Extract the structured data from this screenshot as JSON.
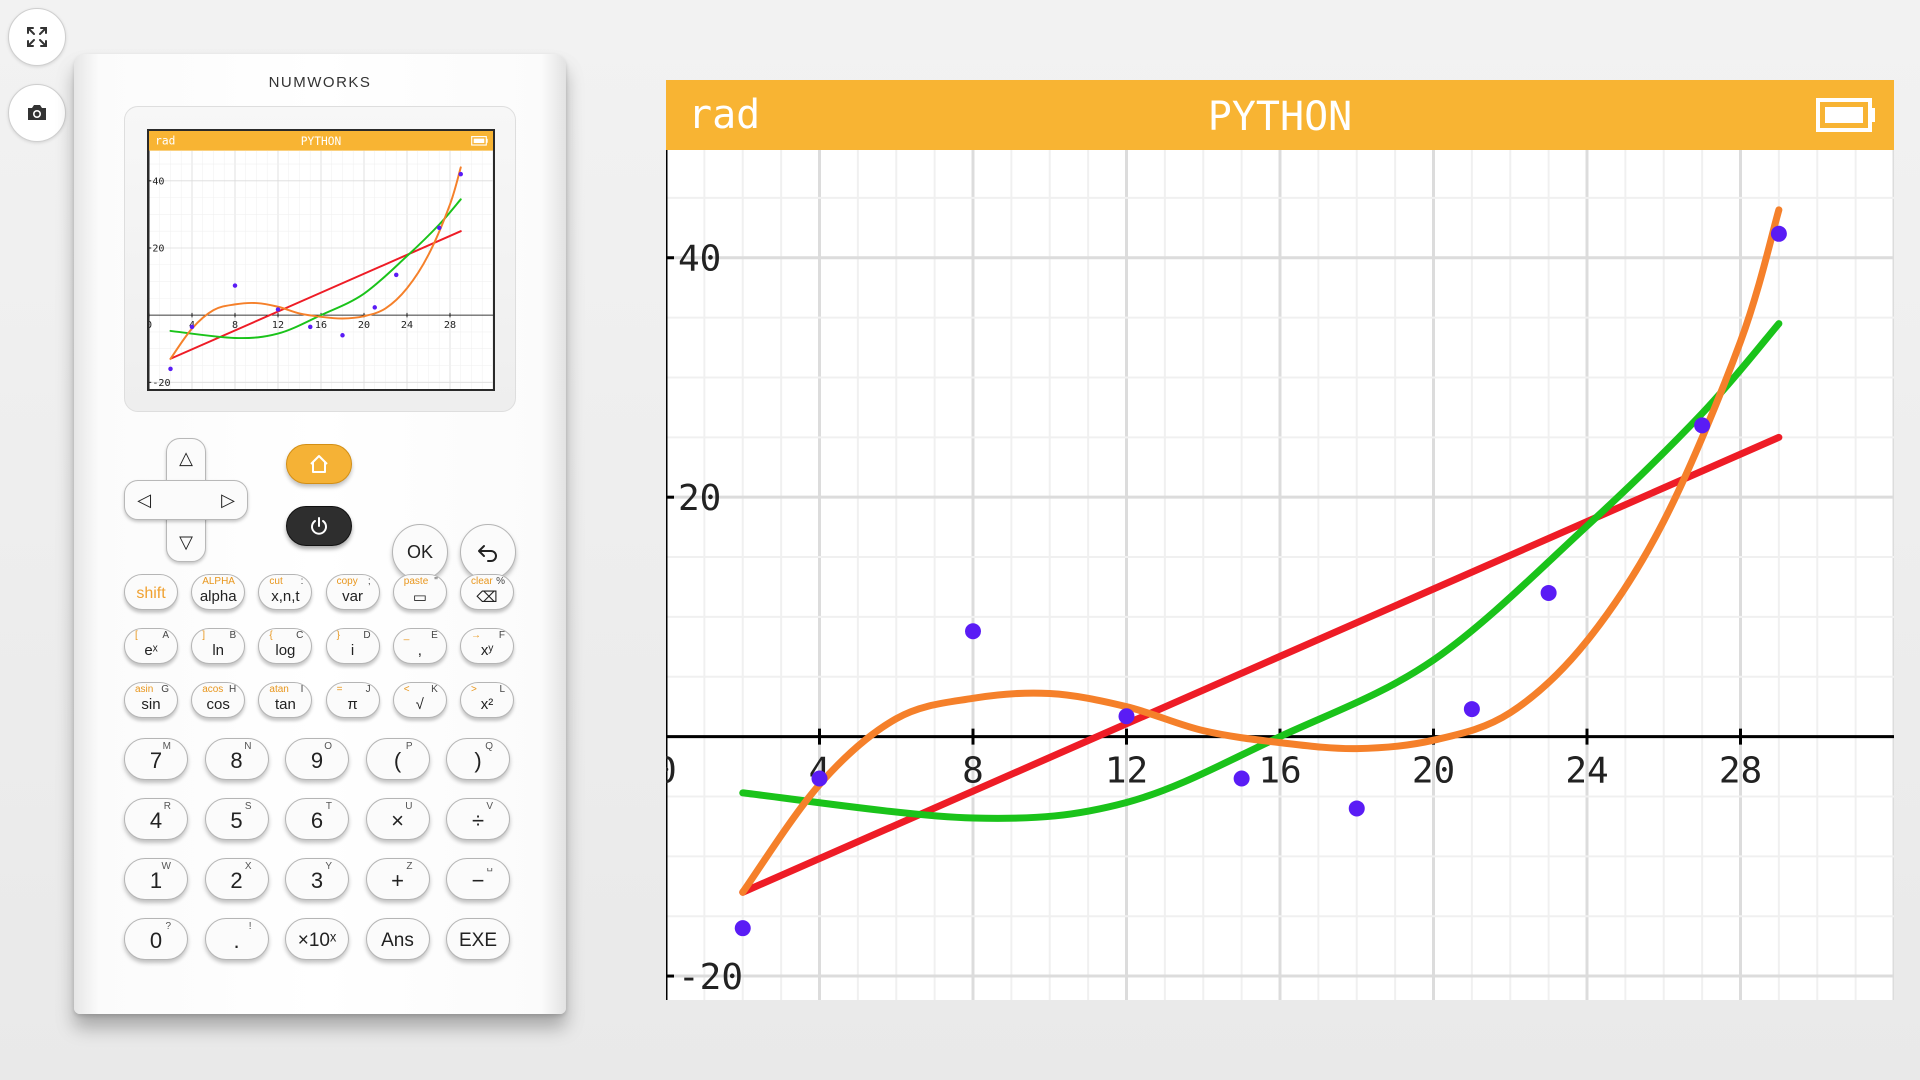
{
  "app": {
    "brand": "NUMWORKS",
    "toolbar": [
      {
        "name": "fullscreen",
        "icon": "fullscreen-icon"
      },
      {
        "name": "screenshot",
        "icon": "camera-icon"
      }
    ]
  },
  "screen": {
    "status_left": "rad",
    "title": "PYTHON",
    "battery_icon": "battery-icon",
    "header_color": "#f8b433"
  },
  "chart_data": {
    "type": "scatter",
    "x_tick_labels": [
      "0",
      "4",
      "8",
      "12",
      "16",
      "20",
      "24",
      "28"
    ],
    "y_tick_labels": [
      "40",
      "20",
      "-20"
    ],
    "x_range": [
      0,
      32
    ],
    "y_range": [
      -22,
      49
    ],
    "grid": true,
    "points": {
      "color": "#5a1cf5",
      "x": [
        2,
        4,
        8,
        12,
        15,
        18,
        21,
        23,
        27,
        29
      ],
      "y": [
        -16,
        -3.5,
        8.8,
        1.7,
        -3.5,
        -6,
        2.3,
        12,
        26,
        42
      ]
    },
    "series": [
      {
        "color": "#ee1c26",
        "degree": 1,
        "x_from": 2,
        "x_to": 29,
        "points": [
          [
            2,
            -13
          ],
          [
            29,
            25
          ]
        ]
      },
      {
        "color": "#1ac31a",
        "degree": 2,
        "x_from": 2,
        "x_to": 29,
        "points": [
          [
            2,
            -4.7
          ],
          [
            8,
            -6.8
          ],
          [
            12,
            -5.5
          ],
          [
            16,
            0
          ],
          [
            20,
            6.4
          ],
          [
            24,
            17.6
          ],
          [
            27,
            27
          ],
          [
            29,
            34.5
          ]
        ]
      },
      {
        "color": "#f5802a",
        "degree": 3,
        "x_from": 2,
        "x_to": 29,
        "points": [
          [
            2,
            -13
          ],
          [
            4,
            -4
          ],
          [
            6,
            1.5
          ],
          [
            8,
            3.2
          ],
          [
            10,
            3.6
          ],
          [
            12,
            2.5
          ],
          [
            14,
            0.5
          ],
          [
            16,
            -0.5
          ],
          [
            18,
            -1
          ],
          [
            20,
            -0.3
          ],
          [
            22,
            2
          ],
          [
            24,
            8
          ],
          [
            26,
            18
          ],
          [
            28,
            33
          ],
          [
            29,
            44
          ]
        ]
      }
    ]
  },
  "keypad": {
    "nav": {
      "up": "△",
      "down": "▽",
      "left": "◁",
      "right": "▷"
    },
    "ok": "OK",
    "row1": [
      {
        "sub": "",
        "sub_r": "",
        "main": "shift"
      },
      {
        "sub": "ALPHA",
        "sub_r": "",
        "main": "alpha"
      },
      {
        "sub": "cut",
        "sub_r": ":",
        "main": "x,n,t"
      },
      {
        "sub": "copy",
        "sub_r": ";",
        "main": "var"
      },
      {
        "sub": "paste",
        "sub_r": "\"",
        "main": "▭"
      },
      {
        "sub": "clear",
        "sub_r": "%",
        "main": "⌫"
      }
    ],
    "row2": [
      {
        "sub": "[",
        "sub_r": "A",
        "main": "eˣ"
      },
      {
        "sub": "]",
        "sub_r": "B",
        "main": "ln"
      },
      {
        "sub": "{",
        "sub_r": "C",
        "main": "log"
      },
      {
        "sub": "}",
        "sub_r": "D",
        "main": "i"
      },
      {
        "sub": "_",
        "sub_r": "E",
        "main": ","
      },
      {
        "sub": "→",
        "sub_r": "F",
        "main": "xʸ"
      }
    ],
    "row3": [
      {
        "sub": "asin",
        "sub_r": "G",
        "main": "sin"
      },
      {
        "sub": "acos",
        "sub_r": "H",
        "main": "cos"
      },
      {
        "sub": "atan",
        "sub_r": "I",
        "main": "tan"
      },
      {
        "sub": "=",
        "sub_r": "J",
        "main": "π"
      },
      {
        "sub": "<",
        "sub_r": "K",
        "main": "√"
      },
      {
        "sub": ">",
        "sub_r": "L",
        "main": "x²"
      }
    ],
    "row4": [
      {
        "main": "7",
        "sup": "M"
      },
      {
        "main": "8",
        "sup": "N"
      },
      {
        "main": "9",
        "sup": "O"
      },
      {
        "main": "(",
        "sup": "P"
      },
      {
        "main": ")",
        "sup": "Q"
      }
    ],
    "row5": [
      {
        "main": "4",
        "sup": "R"
      },
      {
        "main": "5",
        "sup": "S"
      },
      {
        "main": "6",
        "sup": "T"
      },
      {
        "main": "×",
        "sup": "U"
      },
      {
        "main": "÷",
        "sup": "V"
      }
    ],
    "row6": [
      {
        "main": "1",
        "sup": "W"
      },
      {
        "main": "2",
        "sup": "X"
      },
      {
        "main": "3",
        "sup": "Y"
      },
      {
        "main": "+",
        "sup": "Z"
      },
      {
        "main": "−",
        "sup": "␣"
      }
    ],
    "row7": [
      {
        "main": "0",
        "sup": "?"
      },
      {
        "main": ".",
        "sup": "!"
      },
      {
        "main": "×10ˣ",
        "sup": ""
      },
      {
        "main": "Ans",
        "sup": ""
      },
      {
        "main": "EXE",
        "sup": ""
      }
    ]
  }
}
